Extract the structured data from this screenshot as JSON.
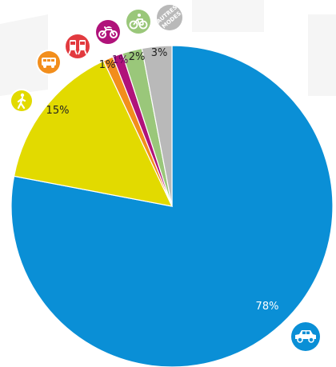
{
  "chart_data": {
    "type": "pie",
    "start_angle_deg": 0,
    "direction": "clockwise",
    "slices": [
      {
        "label": "Voiture",
        "value": 78,
        "text": "78%",
        "color": "#0a8fd6",
        "text_color": "#ffffff",
        "icon": "car-icon"
      },
      {
        "label": "Marche",
        "value": 15,
        "text": "15%",
        "color": "#e2da00",
        "text_color": "#222222",
        "icon": "walking-person-icon"
      },
      {
        "label": "Transports en commun",
        "value": 1,
        "text": "1%",
        "color": "#f28e1c",
        "text_color": "#222222",
        "icon": "bus-icon"
      },
      {
        "label": "Deux-roues motorisés",
        "value": 1,
        "text": "1%",
        "color": "#b0127a",
        "text_color": "#5a0a5a",
        "icon": "motorcycle-icon"
      },
      {
        "label": "Vélo",
        "value": 2,
        "text": "2%",
        "color": "#9ac77a",
        "text_color": "#222222",
        "icon": "bicycle-icon"
      },
      {
        "label": "Autres modes",
        "value": 3,
        "text": "3%",
        "color": "#b9b9b9",
        "text_color": "#222222",
        "icon": "autres-modes-icon"
      }
    ]
  },
  "icons": {
    "autres_modes_lines": [
      "AUTRES",
      "MODES"
    ]
  },
  "colors": {
    "car": "#0a8fd6",
    "walk": "#e2da00",
    "bus": "#f28e1c",
    "train": "#e23a3f",
    "moto": "#b0127a",
    "bike": "#9ac77a",
    "other": "#b9b9b9"
  }
}
